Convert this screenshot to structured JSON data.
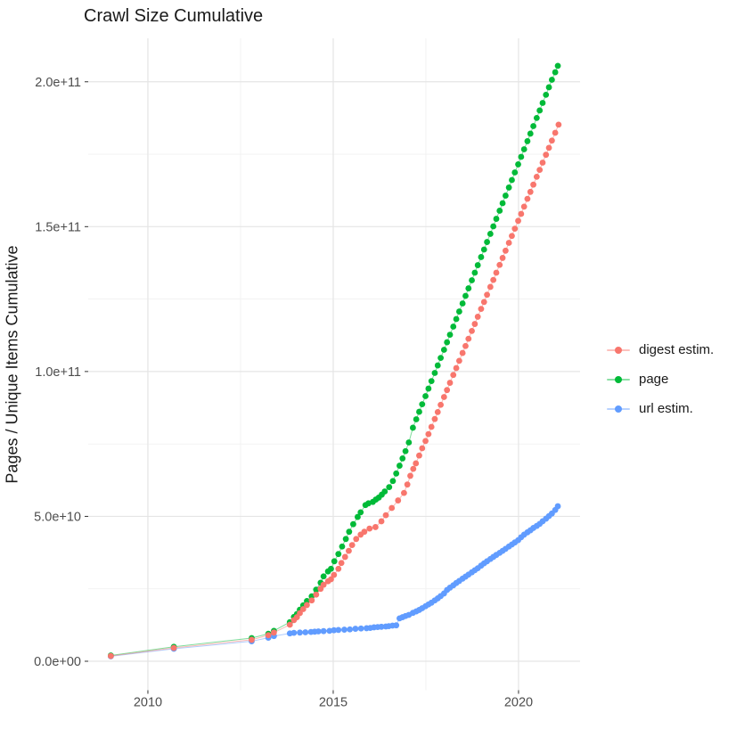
{
  "chart_data": {
    "type": "scatter",
    "title": "Crawl Size Cumulative",
    "xlabel": "",
    "ylabel": "Pages / Unique Items Cumulative",
    "legend_position": "right",
    "grid": true,
    "xlim": [
      2008.39,
      2021.66
    ],
    "ylim_e9": [
      -10,
      215
    ],
    "value_scale": 1000000000.0,
    "xticks": [
      {
        "v": 2010,
        "label": "2010"
      },
      {
        "v": 2015,
        "label": "2015"
      },
      {
        "v": 2020,
        "label": "2020"
      }
    ],
    "yticks": [
      {
        "v": 0,
        "label": "0.0e+00"
      },
      {
        "v": 50,
        "label": "5.0e+10"
      },
      {
        "v": 100,
        "label": "1.0e+11"
      },
      {
        "v": 150,
        "label": "1.5e+11"
      },
      {
        "v": 200,
        "label": "2.0e+11"
      }
    ],
    "x_minor": [
      2012.5,
      2017.5
    ],
    "y_minor_e9": [
      25,
      75,
      125,
      175
    ],
    "series": [
      {
        "id": "digest-estim",
        "name": "digest estim.",
        "color": "#F8766D",
        "points": [
          [
            2009.0,
            1.8
          ],
          [
            2010.7,
            4.6
          ],
          [
            2012.8,
            7.4
          ],
          [
            2013.25,
            9.0
          ],
          [
            2013.4,
            9.9
          ],
          [
            2013.83,
            12.6
          ],
          [
            2013.94,
            14.2
          ],
          [
            2014.02,
            15.2
          ],
          [
            2014.1,
            16.6
          ],
          [
            2014.19,
            18.0
          ],
          [
            2014.29,
            19.4
          ],
          [
            2014.42,
            21.0
          ],
          [
            2014.54,
            23.0
          ],
          [
            2014.66,
            25.0
          ],
          [
            2014.74,
            26.4
          ],
          [
            2014.86,
            27.6
          ],
          [
            2014.94,
            28.3
          ],
          [
            2015.02,
            29.8
          ],
          [
            2015.14,
            31.9
          ],
          [
            2015.22,
            33.9
          ],
          [
            2015.32,
            36.0
          ],
          [
            2015.42,
            38.1
          ],
          [
            2015.51,
            40.1
          ],
          [
            2015.62,
            42.2
          ],
          [
            2015.74,
            43.7
          ],
          [
            2015.84,
            44.7
          ],
          [
            2015.98,
            45.8
          ],
          [
            2016.14,
            46.3
          ],
          [
            2016.3,
            48.3
          ],
          [
            2016.42,
            50.4
          ],
          [
            2016.58,
            52.9
          ],
          [
            2016.75,
            55.5
          ],
          [
            2016.91,
            58.1
          ],
          [
            2017.0,
            61.0
          ],
          [
            2017.08,
            64.0
          ],
          [
            2017.16,
            66.4
          ],
          [
            2017.23,
            68.3
          ],
          [
            2017.32,
            71.0
          ],
          [
            2017.4,
            73.5
          ],
          [
            2017.49,
            76.0
          ],
          [
            2017.57,
            78.4
          ],
          [
            2017.65,
            80.9
          ],
          [
            2017.74,
            83.6
          ],
          [
            2017.82,
            86.0
          ],
          [
            2017.9,
            88.5
          ],
          [
            2017.99,
            91.2
          ],
          [
            2018.07,
            93.6
          ],
          [
            2018.15,
            96.1
          ],
          [
            2018.24,
            98.8
          ],
          [
            2018.32,
            101.2
          ],
          [
            2018.4,
            103.7
          ],
          [
            2018.49,
            106.4
          ],
          [
            2018.57,
            108.8
          ],
          [
            2018.65,
            111.3
          ],
          [
            2018.74,
            114.0
          ],
          [
            2018.82,
            116.4
          ],
          [
            2018.9,
            118.9
          ],
          [
            2018.99,
            121.6
          ],
          [
            2019.07,
            124.0
          ],
          [
            2019.15,
            126.5
          ],
          [
            2019.24,
            129.2
          ],
          [
            2019.32,
            131.6
          ],
          [
            2019.4,
            134.1
          ],
          [
            2019.49,
            136.8
          ],
          [
            2019.57,
            139.2
          ],
          [
            2019.65,
            141.7
          ],
          [
            2019.74,
            144.4
          ],
          [
            2019.82,
            146.8
          ],
          [
            2019.9,
            149.3
          ],
          [
            2019.99,
            152.0
          ],
          [
            2020.07,
            154.4
          ],
          [
            2020.15,
            156.9
          ],
          [
            2020.24,
            159.6
          ],
          [
            2020.32,
            162.0
          ],
          [
            2020.4,
            164.5
          ],
          [
            2020.49,
            167.2
          ],
          [
            2020.57,
            169.6
          ],
          [
            2020.65,
            172.1
          ],
          [
            2020.74,
            174.8
          ],
          [
            2020.82,
            177.2
          ],
          [
            2020.9,
            179.7
          ],
          [
            2020.99,
            182.4
          ],
          [
            2021.08,
            185.2
          ]
        ]
      },
      {
        "id": "page",
        "name": "page",
        "color": "#00BA38",
        "points": [
          [
            2009.0,
            2.0
          ],
          [
            2010.7,
            5.0
          ],
          [
            2012.8,
            8.0
          ],
          [
            2013.25,
            9.5
          ],
          [
            2013.4,
            10.5
          ],
          [
            2013.83,
            13.5
          ],
          [
            2013.94,
            15.3
          ],
          [
            2014.02,
            16.3
          ],
          [
            2014.1,
            17.8
          ],
          [
            2014.19,
            19.3
          ],
          [
            2014.29,
            20.8
          ],
          [
            2014.42,
            22.4
          ],
          [
            2014.54,
            24.7
          ],
          [
            2014.66,
            27.1
          ],
          [
            2014.74,
            29.3
          ],
          [
            2014.86,
            31.0
          ],
          [
            2014.94,
            31.9
          ],
          [
            2015.03,
            34.5
          ],
          [
            2015.14,
            37.0
          ],
          [
            2015.24,
            39.6
          ],
          [
            2015.34,
            42.2
          ],
          [
            2015.43,
            44.7
          ],
          [
            2015.54,
            47.3
          ],
          [
            2015.66,
            49.8
          ],
          [
            2015.74,
            51.4
          ],
          [
            2015.87,
            53.9
          ],
          [
            2015.95,
            54.5
          ],
          [
            2016.07,
            55.0
          ],
          [
            2016.15,
            55.8
          ],
          [
            2016.23,
            56.5
          ],
          [
            2016.31,
            57.5
          ],
          [
            2016.39,
            58.6
          ],
          [
            2016.51,
            60.1
          ],
          [
            2016.61,
            62.2
          ],
          [
            2016.7,
            64.8
          ],
          [
            2016.79,
            67.5
          ],
          [
            2016.87,
            70.0
          ],
          [
            2016.95,
            72.5
          ],
          [
            2017.04,
            75.5
          ],
          [
            2017.15,
            80.6
          ],
          [
            2017.24,
            83.5
          ],
          [
            2017.32,
            86.1
          ],
          [
            2017.4,
            88.7
          ],
          [
            2017.49,
            91.5
          ],
          [
            2017.57,
            94.1
          ],
          [
            2017.65,
            96.7
          ],
          [
            2017.74,
            99.5
          ],
          [
            2017.82,
            102.1
          ],
          [
            2017.9,
            104.7
          ],
          [
            2017.99,
            107.5
          ],
          [
            2018.07,
            110.1
          ],
          [
            2018.15,
            112.7
          ],
          [
            2018.24,
            115.5
          ],
          [
            2018.32,
            118.1
          ],
          [
            2018.4,
            120.7
          ],
          [
            2018.49,
            123.5
          ],
          [
            2018.57,
            126.1
          ],
          [
            2018.65,
            128.7
          ],
          [
            2018.74,
            131.5
          ],
          [
            2018.82,
            134.1
          ],
          [
            2018.9,
            136.7
          ],
          [
            2018.99,
            139.5
          ],
          [
            2019.07,
            142.1
          ],
          [
            2019.15,
            144.7
          ],
          [
            2019.24,
            147.5
          ],
          [
            2019.32,
            150.1
          ],
          [
            2019.4,
            152.7
          ],
          [
            2019.49,
            155.5
          ],
          [
            2019.57,
            158.1
          ],
          [
            2019.65,
            160.7
          ],
          [
            2019.74,
            163.5
          ],
          [
            2019.82,
            166.1
          ],
          [
            2019.9,
            168.7
          ],
          [
            2019.99,
            171.5
          ],
          [
            2020.07,
            174.1
          ],
          [
            2020.15,
            176.7
          ],
          [
            2020.24,
            179.5
          ],
          [
            2020.32,
            182.1
          ],
          [
            2020.4,
            184.7
          ],
          [
            2020.49,
            187.5
          ],
          [
            2020.57,
            190.1
          ],
          [
            2020.65,
            192.7
          ],
          [
            2020.74,
            195.5
          ],
          [
            2020.82,
            198.1
          ],
          [
            2020.9,
            200.7
          ],
          [
            2020.99,
            203.3
          ],
          [
            2021.06,
            205.5
          ]
        ]
      },
      {
        "id": "url-estim",
        "name": "url estim.",
        "color": "#619CFF",
        "points": [
          [
            2009.0,
            1.7
          ],
          [
            2010.7,
            4.3
          ],
          [
            2012.8,
            6.9
          ],
          [
            2013.25,
            8.1
          ],
          [
            2013.4,
            8.7
          ],
          [
            2013.83,
            9.6
          ],
          [
            2013.94,
            9.8
          ],
          [
            2014.1,
            9.9
          ],
          [
            2014.25,
            10.0
          ],
          [
            2014.4,
            10.1
          ],
          [
            2014.5,
            10.2
          ],
          [
            2014.6,
            10.3
          ],
          [
            2014.74,
            10.4
          ],
          [
            2014.9,
            10.5
          ],
          [
            2015.02,
            10.7
          ],
          [
            2015.14,
            10.8
          ],
          [
            2015.3,
            10.9
          ],
          [
            2015.45,
            11.0
          ],
          [
            2015.6,
            11.2
          ],
          [
            2015.75,
            11.3
          ],
          [
            2015.9,
            11.4
          ],
          [
            2016.0,
            11.5
          ],
          [
            2016.1,
            11.7
          ],
          [
            2016.2,
            11.8
          ],
          [
            2016.3,
            11.9
          ],
          [
            2016.42,
            12.0
          ],
          [
            2016.5,
            12.1
          ],
          [
            2016.6,
            12.3
          ],
          [
            2016.7,
            12.4
          ],
          [
            2016.79,
            14.8
          ],
          [
            2016.87,
            15.2
          ],
          [
            2016.95,
            15.6
          ],
          [
            2017.04,
            16.0
          ],
          [
            2017.15,
            16.7
          ],
          [
            2017.24,
            17.2
          ],
          [
            2017.32,
            17.7
          ],
          [
            2017.4,
            18.3
          ],
          [
            2017.49,
            19.0
          ],
          [
            2017.57,
            19.6
          ],
          [
            2017.65,
            20.2
          ],
          [
            2017.74,
            21.0
          ],
          [
            2017.82,
            21.7
          ],
          [
            2017.9,
            22.5
          ],
          [
            2017.99,
            23.4
          ],
          [
            2018.07,
            24.6
          ],
          [
            2018.15,
            25.4
          ],
          [
            2018.24,
            26.2
          ],
          [
            2018.32,
            27.0
          ],
          [
            2018.4,
            27.7
          ],
          [
            2018.49,
            28.5
          ],
          [
            2018.57,
            29.2
          ],
          [
            2018.65,
            29.9
          ],
          [
            2018.74,
            30.7
          ],
          [
            2018.82,
            31.4
          ],
          [
            2018.9,
            32.1
          ],
          [
            2018.99,
            33.0
          ],
          [
            2019.07,
            33.8
          ],
          [
            2019.15,
            34.5
          ],
          [
            2019.24,
            35.3
          ],
          [
            2019.32,
            36.0
          ],
          [
            2019.4,
            36.7
          ],
          [
            2019.49,
            37.4
          ],
          [
            2019.57,
            38.1
          ],
          [
            2019.65,
            38.8
          ],
          [
            2019.74,
            39.6
          ],
          [
            2019.82,
            40.3
          ],
          [
            2019.9,
            41.0
          ],
          [
            2019.99,
            41.8
          ],
          [
            2020.07,
            42.8
          ],
          [
            2020.15,
            43.7
          ],
          [
            2020.24,
            44.5
          ],
          [
            2020.32,
            45.2
          ],
          [
            2020.4,
            46.0
          ],
          [
            2020.49,
            46.7
          ],
          [
            2020.57,
            47.4
          ],
          [
            2020.65,
            48.3
          ],
          [
            2020.74,
            49.2
          ],
          [
            2020.82,
            50.1
          ],
          [
            2020.9,
            51.0
          ],
          [
            2020.99,
            52.2
          ],
          [
            2021.06,
            53.5
          ]
        ]
      }
    ]
  }
}
